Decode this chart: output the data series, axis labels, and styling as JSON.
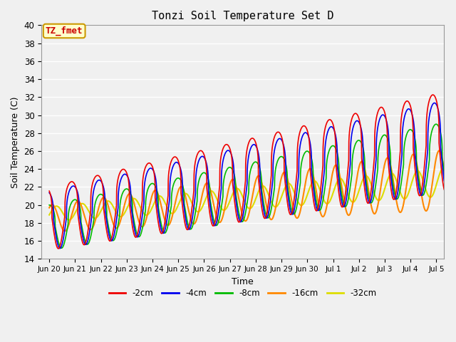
{
  "title": "Tonzi Soil Temperature Set D",
  "xlabel": "Time",
  "ylabel": "Soil Temperature (C)",
  "ylim": [
    14,
    40
  ],
  "xlim_days": [
    -0.3,
    15.3
  ],
  "background_color": "#f0f0f0",
  "plot_bg_color": "#f0f0f0",
  "grid_color": "#ffffff",
  "annotation_text": "TZ_fmet",
  "annotation_bg": "#ffffcc",
  "annotation_border": "#cc9900",
  "annotation_text_color": "#cc0000",
  "line_colors": {
    "-2cm": "#ee0000",
    "-4cm": "#0000ee",
    "-8cm": "#00bb00",
    "-16cm": "#ff8800",
    "-32cm": "#dddd00"
  },
  "line_lw": 1.2,
  "legend_labels": [
    "-2cm",
    "-4cm",
    "-8cm",
    "-16cm",
    "-32cm"
  ],
  "legend_colors": [
    "#ee0000",
    "#0000ee",
    "#00bb00",
    "#ff8800",
    "#dddd00"
  ],
  "tick_labels": [
    "Jun 20",
    "Jun 21",
    "Jun 22",
    "Jun 23",
    "Jun 24",
    "Jun 25",
    "Jun 26",
    "Jun 27",
    "Jun 28",
    "Jun 29",
    "Jun 30",
    "Jul 1",
    "Jul 2",
    "Jul 3",
    "Jul 4",
    "Jul 5"
  ],
  "tick_positions": [
    0,
    1,
    2,
    3,
    4,
    5,
    6,
    7,
    8,
    9,
    10,
    11,
    12,
    13,
    14,
    15
  ]
}
